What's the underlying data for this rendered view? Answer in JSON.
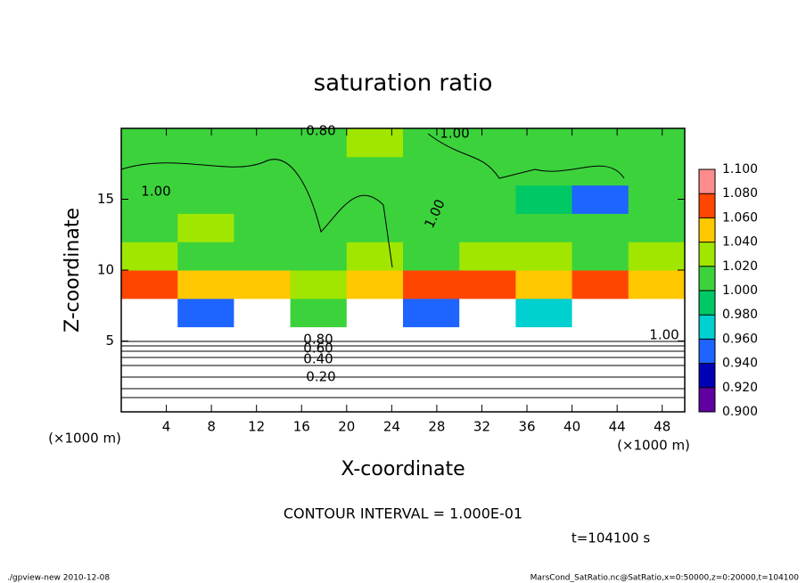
{
  "chart_data": {
    "type": "heatmap",
    "title": "saturation ratio",
    "x_label": "X-coordinate",
    "y_label": "Z-coordinate",
    "x_unit": "(×1000 m)",
    "y_unit": "(×1000 m)",
    "contour_interval": "CONTOUR INTERVAL = 1.000E-01",
    "time_label": "t=104100 s",
    "footer_left": "./gpview-new  2010-12-08",
    "footer_right": "MarsCond_SatRatio.nc@SatRatio,x=0:50000,z=0:20000,t=104100",
    "annotations": [
      "0.80",
      "1.00",
      "1.00",
      "1.00",
      "0.80",
      "0.60",
      "0.40",
      "0.20",
      "1.00"
    ],
    "xlim": [
      0,
      50
    ],
    "ylim": [
      0,
      20
    ],
    "xticks": [
      4,
      8,
      12,
      16,
      20,
      24,
      28,
      32,
      36,
      40,
      44,
      48
    ],
    "yticks": [
      5,
      10,
      15
    ],
    "x": [
      2.5,
      7.5,
      12.5,
      17.5,
      22.5,
      27.5,
      32.5,
      37.5,
      42.5,
      47.5
    ],
    "y": [
      1,
      3,
      5,
      7,
      9,
      11,
      13,
      15,
      17,
      19
    ],
    "values": [
      [
        0.1,
        0.1,
        0.1,
        0.1,
        0.1,
        0.1,
        0.1,
        0.1,
        0.1,
        0.1
      ],
      [
        0.35,
        0.35,
        0.35,
        0.35,
        0.35,
        0.35,
        0.35,
        0.35,
        0.35,
        0.35
      ],
      [
        0.75,
        0.75,
        0.75,
        0.75,
        0.75,
        0.75,
        0.75,
        0.75,
        0.75,
        0.75
      ],
      [
        0.85,
        0.95,
        0.8,
        1.0,
        0.8,
        0.95,
        0.85,
        0.97,
        0.85,
        0.88
      ],
      [
        1.07,
        1.05,
        1.04,
        1.03,
        1.05,
        1.06,
        1.07,
        1.05,
        1.06,
        1.04
      ],
      [
        1.03,
        1.01,
        1.0,
        1.01,
        1.02,
        1.0,
        1.02,
        1.03,
        1.01,
        1.02
      ],
      [
        1.0,
        1.02,
        1.0,
        1.0,
        1.01,
        1.0,
        1.0,
        1.0,
        1.0,
        1.0
      ],
      [
        1.01,
        1.0,
        1.0,
        1.0,
        1.0,
        1.0,
        1.0,
        0.99,
        0.95,
        1.0
      ],
      [
        1.0,
        1.0,
        1.0,
        1.0,
        1.0,
        1.0,
        1.0,
        1.0,
        1.0,
        1.0
      ],
      [
        1.0,
        1.0,
        1.0,
        1.01,
        1.02,
        1.0,
        1.0,
        1.0,
        1.0,
        1.0
      ]
    ],
    "levels": [
      {
        "value": 0.9,
        "label": "0.900"
      },
      {
        "value": 0.92,
        "label": "0.920"
      },
      {
        "value": 0.94,
        "label": "0.940"
      },
      {
        "value": 0.96,
        "label": "0.960"
      },
      {
        "value": 0.98,
        "label": "0.980"
      },
      {
        "value": 1.0,
        "label": "1.000"
      },
      {
        "value": 1.02,
        "label": "1.020"
      },
      {
        "value": 1.04,
        "label": "1.040"
      },
      {
        "value": 1.06,
        "label": "1.060"
      },
      {
        "value": 1.08,
        "label": "1.080"
      },
      {
        "value": 1.1,
        "label": "1.100"
      }
    ],
    "colors": [
      "#6000a0",
      "#0000b4",
      "#1e64ff",
      "#00d0d0",
      "#00c864",
      "#3cd23c",
      "#a0e600",
      "#ffc800",
      "#ff4600",
      "#ff8c8c"
    ]
  }
}
